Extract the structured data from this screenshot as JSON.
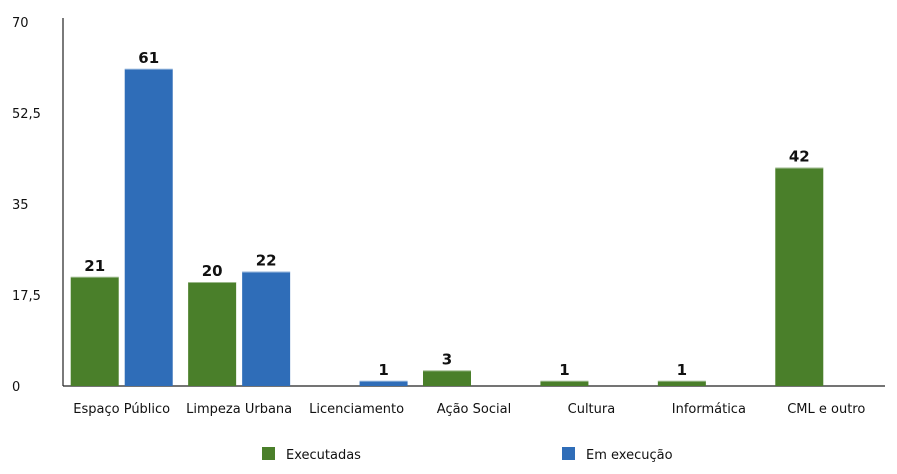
{
  "chart_data": {
    "type": "bar",
    "categories": [
      "Espaço Público",
      "Limpeza Urbana",
      "Licenciamento",
      "Ação Social",
      "Cultura",
      "Informática",
      "CML e outro"
    ],
    "series": [
      {
        "name": "Executadas",
        "values": [
          21,
          20,
          null,
          3,
          1,
          1,
          42
        ],
        "color": "#4a7f2a"
      },
      {
        "name": "Em execução",
        "values": [
          61,
          22,
          1,
          null,
          null,
          null,
          null
        ],
        "color": "#2f6db8"
      }
    ],
    "yticks": [
      "0",
      "17,5",
      "35",
      "52,5",
      "70"
    ],
    "ylim": [
      0,
      70
    ],
    "grid": false,
    "legend_position": "bottom"
  }
}
